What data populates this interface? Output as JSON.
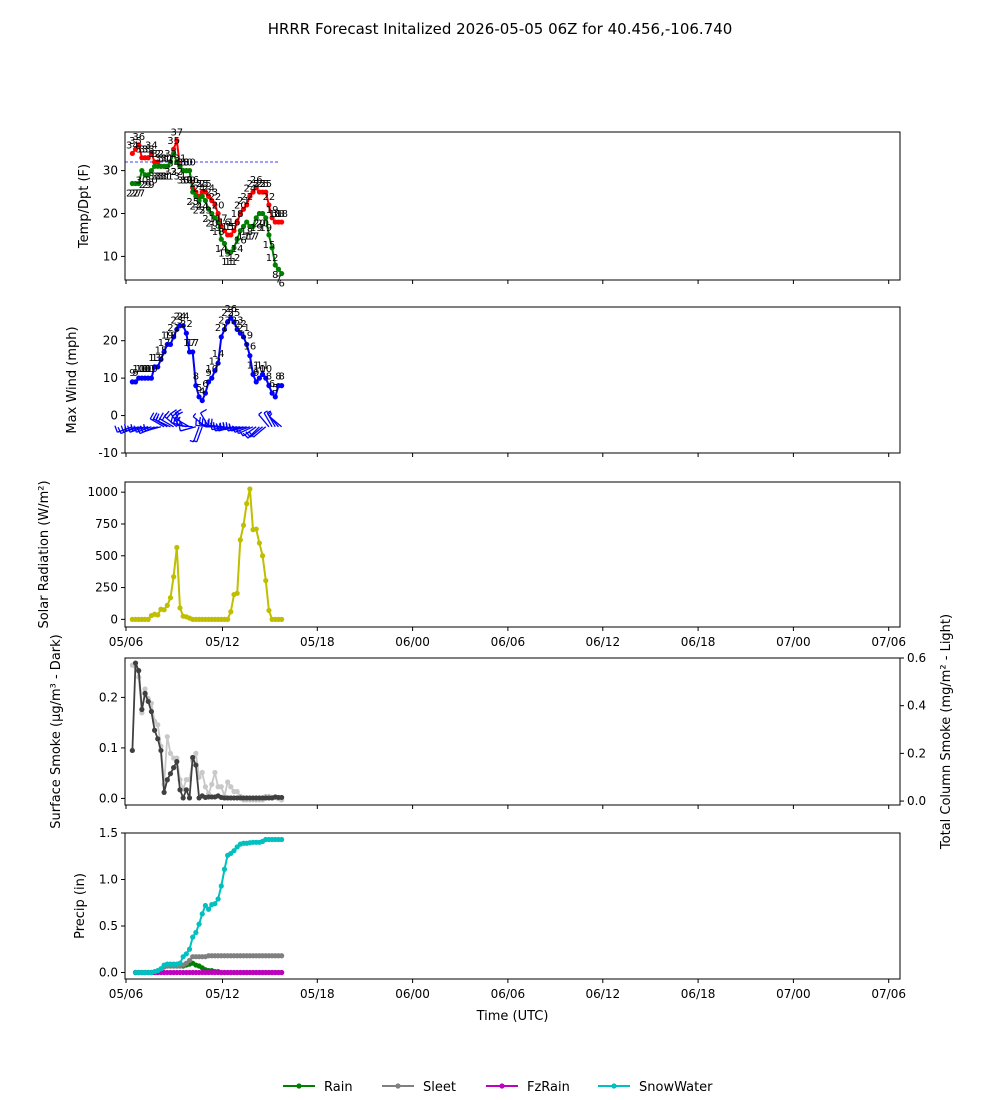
{
  "title": "HRRR Forecast Initalized 2026-05-05 06Z for 40.456,-106.740",
  "xlabel": "Time (UTC)",
  "xticks": [
    "05/06",
    "05/12",
    "05/18",
    "06/00",
    "06/06",
    "06/12",
    "06/18",
    "07/00",
    "07/06"
  ],
  "colors": {
    "temp": "#ff0000",
    "dewpoint": "#008000",
    "freezing": "#0000ff",
    "wind": "#0000ff",
    "solar": "#bfbf00",
    "smoke_dark": "#404040",
    "smoke_light": "#c8c8c8",
    "rain": "#008000",
    "sleet": "#808080",
    "fzrain": "#c000c0",
    "snow": "#00c0c0"
  },
  "chart_data": [
    {
      "type": "line",
      "ylabel": "Temp/Dpt (F)",
      "ylim": [
        4.5,
        39
      ],
      "yticks": [
        10,
        20,
        30
      ],
      "freezing_line": 32,
      "series": [
        {
          "values": [
            34,
            35,
            36,
            33,
            33,
            33,
            34,
            32,
            32,
            31,
            31,
            31,
            32,
            35,
            37,
            31,
            30,
            30,
            30,
            26,
            25,
            24,
            25,
            25,
            24,
            23,
            22,
            20,
            17,
            16,
            15,
            15,
            16,
            18,
            20,
            21,
            22,
            24,
            25,
            26,
            25,
            25,
            25,
            22,
            19,
            18,
            18,
            18
          ]
        },
        {
          "values": [
            27,
            27,
            27,
            30,
            29,
            29,
            30,
            31,
            31,
            31,
            31,
            31,
            32,
            34,
            32,
            31,
            30,
            30,
            30,
            25,
            24,
            23,
            24,
            23,
            21,
            20,
            19,
            18,
            14,
            13,
            11,
            11,
            12,
            14,
            16,
            17,
            18,
            17,
            17,
            19,
            20,
            20,
            19,
            15,
            12,
            8,
            7,
            6
          ]
        }
      ]
    },
    {
      "type": "line",
      "ylabel": "Max Wind (mph)",
      "ylim": [
        -10,
        29
      ],
      "yticks": [
        -10,
        0,
        10,
        20
      ],
      "series": [
        {
          "values": [
            9,
            9,
            10,
            10,
            10,
            10,
            10,
            13,
            13,
            15,
            17,
            19,
            19,
            21,
            23,
            24,
            24,
            22,
            17,
            17,
            8,
            5,
            4,
            6,
            9,
            10,
            12,
            14,
            21,
            23,
            25,
            26,
            25,
            23,
            22,
            21,
            19,
            16,
            11,
            9,
            10,
            11,
            10,
            8,
            6,
            5,
            8,
            8
          ]
        }
      ],
      "barb_directions": [
        250,
        245,
        250,
        255,
        250,
        255,
        250,
        245,
        250,
        255,
        300,
        300,
        295,
        300,
        310,
        325,
        330,
        285,
        300,
        275,
        255,
        200,
        200,
        310,
        330,
        275,
        280,
        275,
        270,
        275,
        260,
        255,
        255,
        260,
        260,
        255,
        255,
        250,
        245,
        235,
        225,
        230,
        230,
        320,
        330,
        330,
        320,
        310
      ]
    },
    {
      "type": "line",
      "ylabel": "Solar Radiation (W/m²)",
      "ylim": [
        -60,
        1080
      ],
      "yticks": [
        0,
        250,
        500,
        750,
        1000
      ],
      "series": [
        {
          "values": [
            0,
            0,
            0,
            0,
            0,
            0,
            30,
            40,
            35,
            80,
            75,
            110,
            170,
            335,
            565,
            90,
            25,
            20,
            10,
            0,
            0,
            0,
            0,
            0,
            0,
            0,
            0,
            0,
            0,
            0,
            0,
            60,
            195,
            205,
            625,
            740,
            910,
            1025,
            705,
            710,
            600,
            500,
            305,
            70,
            0,
            0,
            0,
            0
          ]
        }
      ]
    },
    {
      "type": "line",
      "ylabel": "Surface Smoke (μg/m³ - Dark)",
      "ylabel_right": "Total Column Smoke (mg/m² - Light)",
      "ylim": [
        -0.013,
        0.278
      ],
      "ylim_right": [
        -0.0165,
        0.6
      ],
      "yticks": [
        0.0,
        0.1,
        0.2
      ],
      "yticks_right": [
        0.0,
        0.2,
        0.4,
        0.6
      ],
      "series": [
        {
          "values": [
            0.095,
            0.268,
            0.253,
            0.176,
            0.208,
            0.192,
            0.172,
            0.135,
            0.118,
            0.095,
            0.012,
            0.037,
            0.049,
            0.061,
            0.073,
            0.017,
            0.001,
            0.017,
            0.001,
            0.081,
            0.066,
            0.001,
            0.005,
            0.002,
            0.003,
            0.003,
            0.003,
            0.005,
            0.002,
            0.001,
            0.001,
            0.001,
            0.001,
            0.001,
            0.001,
            0.001,
            0.001,
            0.001,
            0.001,
            0.001,
            0.001,
            0.001,
            0.001,
            0.001,
            0.001,
            0.003,
            0.002,
            0.002
          ]
        },
        {
          "values": [
            0.57,
            0.565,
            0.52,
            0.37,
            0.47,
            0.43,
            0.41,
            0.335,
            0.32,
            0.23,
            0.07,
            0.27,
            0.2,
            0.18,
            0.18,
            0.09,
            0.05,
            0.09,
            0.09,
            0.17,
            0.2,
            0.1,
            0.12,
            0.06,
            0.03,
            0.07,
            0.12,
            0.06,
            0.06,
            0.02,
            0.08,
            0.06,
            0.04,
            0.04,
            0.02,
            0.005,
            0.005,
            0.005,
            0.005,
            0.005,
            0.005,
            0.005,
            0.02,
            0.02,
            0.015,
            0.015,
            0.01,
            0.005
          ]
        }
      ]
    },
    {
      "type": "line",
      "ylabel": "Precip (in)",
      "ylim": [
        -0.07,
        1.5
      ],
      "yticks": [
        0.0,
        0.5,
        1.0,
        1.5
      ],
      "legend_position": "bottom-center",
      "series": [
        {
          "name": "Rain",
          "values": [
            0.0,
            0.0,
            0.0,
            0.0,
            0.0,
            0.0,
            0.0,
            0.01,
            0.03,
            0.06,
            0.07,
            0.07,
            0.07,
            0.07,
            0.07,
            0.07,
            0.08,
            0.09,
            0.1,
            0.08,
            0.07,
            0.05,
            0.03,
            0.02,
            0.02,
            0.01,
            0.01,
            0.0,
            0.0,
            0.0,
            0.0,
            0.0,
            0.0,
            0.0,
            0.0,
            0.0,
            0.0,
            0.0,
            0.0,
            0.0,
            0.0,
            0.0,
            0.0,
            0.0,
            0.0,
            0.0,
            0.0
          ]
        },
        {
          "name": "Sleet",
          "values": [
            0.0,
            0.0,
            0.0,
            0.0,
            0.0,
            0.0,
            0.0,
            0.01,
            0.03,
            0.06,
            0.07,
            0.07,
            0.07,
            0.07,
            0.07,
            0.08,
            0.1,
            0.13,
            0.17,
            0.17,
            0.17,
            0.17,
            0.17,
            0.18,
            0.18,
            0.18,
            0.18,
            0.18,
            0.18,
            0.18,
            0.18,
            0.18,
            0.18,
            0.18,
            0.18,
            0.18,
            0.18,
            0.18,
            0.18,
            0.18,
            0.18,
            0.18,
            0.18,
            0.18,
            0.18,
            0.18,
            0.18
          ]
        },
        {
          "name": "FzRain",
          "values": [
            0.0,
            0.0,
            0.0,
            0.0,
            0.0,
            0.0,
            0.0,
            0.0,
            0.0,
            0.0,
            0.0,
            0.0,
            0.0,
            0.0,
            0.0,
            0.0,
            0.0,
            0.0,
            0.0,
            0.0,
            0.0,
            0.0,
            0.0,
            0.0,
            0.0,
            0.0,
            0.0,
            0.0,
            0.0,
            0.0,
            0.0,
            0.0,
            0.0,
            0.0,
            0.0,
            0.0,
            0.0,
            0.0,
            0.0,
            0.0,
            0.0,
            0.0,
            0.0,
            0.0,
            0.0,
            0.0,
            0.0
          ]
        },
        {
          "name": "SnowWater",
          "values": [
            0.0,
            0.0,
            0.0,
            0.0,
            0.0,
            0.0,
            0.01,
            0.02,
            0.04,
            0.08,
            0.09,
            0.09,
            0.09,
            0.09,
            0.1,
            0.17,
            0.2,
            0.25,
            0.38,
            0.43,
            0.52,
            0.63,
            0.72,
            0.68,
            0.73,
            0.74,
            0.79,
            0.93,
            1.11,
            1.26,
            1.28,
            1.31,
            1.35,
            1.38,
            1.39,
            1.39,
            1.395,
            1.4,
            1.4,
            1.4,
            1.41,
            1.43,
            1.43,
            1.43,
            1.43,
            1.43,
            1.43
          ]
        }
      ]
    }
  ]
}
